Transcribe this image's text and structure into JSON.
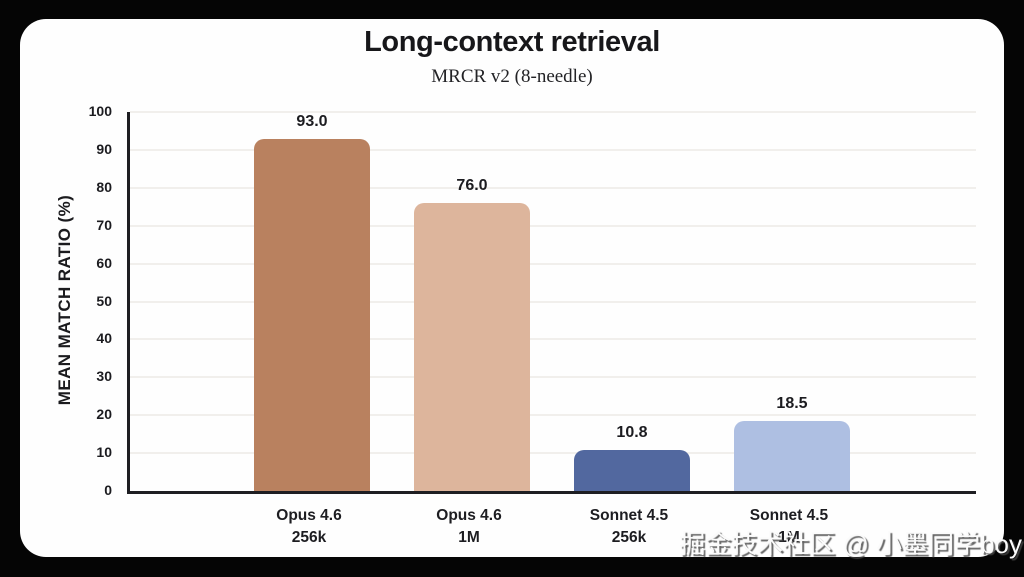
{
  "chart_data": {
    "type": "bar",
    "title": "Long-context retrieval",
    "subtitle": "MRCR v2 (8-needle)",
    "ylabel": "MEAN MATCH RATIO (%)",
    "ylim": [
      0,
      100
    ],
    "ytick_step": 10,
    "grid": true,
    "legend": "none",
    "categories": [
      {
        "line1": "Opus 4.6",
        "line2": "256k"
      },
      {
        "line1": "Opus 4.6",
        "line2": "1M"
      },
      {
        "line1": "Sonnet 4.5",
        "line2": "256k"
      },
      {
        "line1": "Sonnet 4.5",
        "line2": "1M"
      }
    ],
    "values": [
      93.0,
      76.0,
      10.8,
      18.5
    ],
    "value_labels": [
      "93.0",
      "76.0",
      "10.8",
      "18.5"
    ],
    "bar_colors": [
      "#b9815f",
      "#ddb59c",
      "#52689f",
      "#aebfe2"
    ]
  },
  "watermark": {
    "text": "掘金技术社区 @ 小墨同学boy"
  }
}
